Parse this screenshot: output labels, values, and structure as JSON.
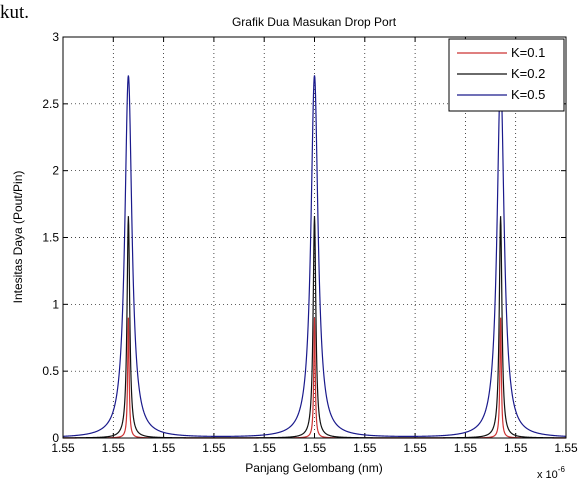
{
  "page_text": "kut.",
  "chart_data": {
    "type": "line",
    "title": "Grafik Dua Masukan Drop Port",
    "xlabel": "Panjang Gelombang (nm)",
    "ylabel": "Intesitas Daya (Pout/Pin)",
    "x_exponent_label": "x 10",
    "x_exponent_power": "-6",
    "xlim": [
      1.5495,
      1.5505
    ],
    "ylim": [
      0,
      3
    ],
    "grid": true,
    "legend_position": "top-right",
    "x_tick_labels": [
      "1.55",
      "1.55",
      "1.55",
      "1.55",
      "1.55",
      "1.55",
      "1.55",
      "1.55",
      "1.55",
      "1.55",
      "1.55"
    ],
    "y_tick_labels": [
      "0",
      "0.5",
      "1",
      "1.5",
      "2",
      "2.5",
      "3"
    ],
    "y_ticks": [
      0,
      0.5,
      1,
      1.5,
      2,
      2.5,
      3
    ],
    "peak_centers": [
      1.54963,
      1.55,
      1.55037
    ],
    "series": [
      {
        "name": "K=0.1",
        "color": "#cc3333",
        "peak": 0.9,
        "half_width": 1.7e-06
      },
      {
        "name": "K=0.2",
        "color": "#111111",
        "peak": 1.66,
        "half_width": 3.2e-06
      },
      {
        "name": "K=0.5",
        "color": "#1a1a8c",
        "peak": 2.71,
        "half_width": 8.5e-06
      }
    ]
  }
}
